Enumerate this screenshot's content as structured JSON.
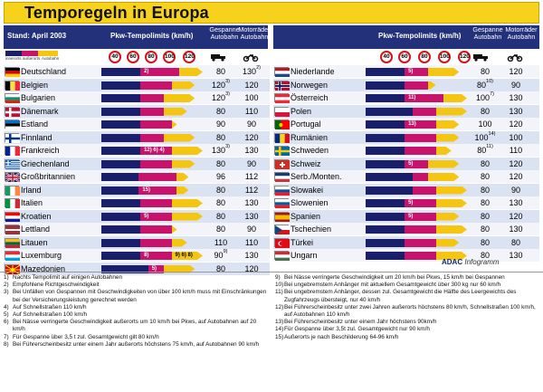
{
  "title": "Temporegeln in Europa",
  "header": {
    "stand": "Stand: April 2003",
    "pkw": "Pkw-Tempolimits (km/h)",
    "gespanne": "Gespanne",
    "gespanne2": "Autobahn",
    "motorrad": "Motorräder",
    "motorrad2": "Autobahn",
    "speeds": [
      "40",
      "60",
      "80",
      "100",
      "120"
    ]
  },
  "legend": {
    "innerorts": "innerorts",
    "ausserorts": "außerorts",
    "autobahn": "Autobahn"
  },
  "colors": {
    "navy": "#1a1f6b",
    "magenta": "#c7136b",
    "yellow": "#f4c511",
    "header": "#23307a",
    "titlebar": "#f7d21c"
  },
  "left": [
    {
      "name": "Deutschland",
      "flag": "de",
      "fn": "2)",
      "g": "80",
      "m": "130",
      "msup": "2)",
      "inner": 50,
      "outer": 100,
      "auto": 130
    },
    {
      "name": "Belgien",
      "flag": "be",
      "fn": "",
      "g": "120",
      "gsup": "3)",
      "m": "120",
      "inner": 50,
      "outer": 90,
      "auto": 120
    },
    {
      "name": "Bulgarien",
      "flag": "bg",
      "fn": "",
      "g": "120",
      "gsup": "3)",
      "m": "100",
      "inner": 50,
      "outer": 80,
      "auto": 120
    },
    {
      "name": "Dänemark",
      "flag": "dk",
      "fn": "",
      "g": "80",
      "m": "110",
      "inner": 50,
      "outer": 80,
      "auto": 110
    },
    {
      "name": "Estland",
      "flag": "ee",
      "fn": "",
      "g": "90",
      "m": "90",
      "inner": 50,
      "outer": 90,
      "auto": 90
    },
    {
      "name": "Finnland",
      "flag": "fi",
      "fn": "",
      "g": "80",
      "m": "120",
      "inner": 50,
      "outer": 80,
      "auto": 120
    },
    {
      "name": "Frankreich",
      "flag": "fr",
      "fn": "12) 6) 4)",
      "g": "130",
      "gsup": "3)",
      "m": "130",
      "inner": 50,
      "outer": 90,
      "auto": 130
    },
    {
      "name": "Griechenland",
      "flag": "gr",
      "fn": "",
      "g": "80",
      "m": "90",
      "inner": 50,
      "outer": 90,
      "auto": 120
    },
    {
      "name": "Großbritannien",
      "flag": "gb",
      "fn": "",
      "g": "96",
      "m": "112",
      "inner": 48,
      "outer": 96,
      "auto": 112
    },
    {
      "name": "Irland",
      "flag": "ie",
      "fn": "15)",
      "g": "80",
      "m": "112",
      "inner": 48,
      "outer": 96,
      "auto": 112
    },
    {
      "name": "Italien",
      "flag": "it",
      "fn": "",
      "g": "80",
      "m": "130",
      "inner": 50,
      "outer": 90,
      "auto": 130
    },
    {
      "name": "Kroatien",
      "flag": "hr",
      "fn": "5)",
      "g": "80",
      "m": "130",
      "inner": 50,
      "outer": 90,
      "auto": 130
    },
    {
      "name": "Lettland",
      "flag": "lv",
      "fn": "",
      "g": "80",
      "m": "90",
      "inner": 50,
      "outer": 90,
      "auto": 90
    },
    {
      "name": "Litauen",
      "flag": "lt",
      "fn": "",
      "g": "110",
      "m": "110",
      "inner": 50,
      "outer": 90,
      "auto": 110
    },
    {
      "name": "Luxemburg",
      "flag": "lu",
      "fn": "8)",
      "fn2": "9) 6) 8)",
      "g": "90",
      "gsup": "9)",
      "m": "130",
      "inner": 50,
      "outer": 90,
      "auto": 130
    },
    {
      "name": "Mazedonien",
      "flag": "mk",
      "fn": "5)",
      "g": "80",
      "m": "120",
      "inner": 60,
      "outer": 80,
      "auto": 120
    }
  ],
  "right": [
    {
      "name": "Niederlande",
      "flag": "nl",
      "fn": "5)",
      "g": "80",
      "m": "120",
      "inner": 50,
      "outer": 80,
      "auto": 120
    },
    {
      "name": "Norwegen",
      "flag": "no",
      "fn": "",
      "g": "80",
      "gsup": "10)",
      "m": "90",
      "inner": 50,
      "outer": 80,
      "auto": 90
    },
    {
      "name": "Österreich",
      "flag": "at",
      "fn": "11)",
      "g": "100",
      "gsup": "7)",
      "m": "130",
      "inner": 50,
      "outer": 100,
      "auto": 130
    },
    {
      "name": "Polen",
      "flag": "pl",
      "fn": "",
      "g": "80",
      "m": "130",
      "inner": 60,
      "outer": 90,
      "auto": 130
    },
    {
      "name": "Portugal",
      "flag": "pt",
      "fn": "13)",
      "g": "100",
      "m": "120",
      "inner": 50,
      "outer": 90,
      "auto": 120
    },
    {
      "name": "Rumänien",
      "flag": "ro",
      "fn": "",
      "g": "100",
      "gsup": "14)",
      "m": "100",
      "inner": 50,
      "outer": 90,
      "auto": 120
    },
    {
      "name": "Schweden",
      "flag": "se",
      "fn": "",
      "g": "80",
      "gsup": "11)",
      "m": "110",
      "inner": 50,
      "outer": 90,
      "auto": 110
    },
    {
      "name": "Schweiz",
      "flag": "ch",
      "fn": "5)",
      "g": "80",
      "m": "120",
      "inner": 50,
      "outer": 80,
      "auto": 120
    },
    {
      "name": "Serb./Monten.",
      "flag": "yu",
      "fn": "",
      "g": "80",
      "m": "120",
      "inner": 60,
      "outer": 80,
      "auto": 120
    },
    {
      "name": "Slowakei",
      "flag": "sk",
      "fn": "",
      "g": "80",
      "m": "90",
      "inner": 60,
      "outer": 90,
      "auto": 130
    },
    {
      "name": "Slowenien",
      "flag": "si",
      "fn": "5)",
      "g": "80",
      "m": "130",
      "inner": 50,
      "outer": 90,
      "auto": 130
    },
    {
      "name": "Spanien",
      "flag": "es",
      "fn": "5)",
      "g": "80",
      "m": "120",
      "inner": 50,
      "outer": 90,
      "auto": 120
    },
    {
      "name": "Tschechien",
      "flag": "cz",
      "fn": "",
      "g": "80",
      "m": "130",
      "inner": 50,
      "outer": 90,
      "auto": 130
    },
    {
      "name": "Türkei",
      "flag": "tr",
      "fn": "",
      "g": "80",
      "m": "80",
      "inner": 50,
      "outer": 90,
      "auto": 120
    },
    {
      "name": "Ungarn",
      "flag": "hu",
      "fn": "",
      "g": "80",
      "m": "130",
      "inner": 50,
      "outer": 90,
      "auto": 130
    }
  ],
  "adac": "ADAC",
  "infogramm": "Infogramm",
  "notes_left": [
    {
      "n": "1)",
      "t": "Nachts Tempolimit auf einigen Autobahnen"
    },
    {
      "n": "2)",
      "t": "Empfohlene Richtgeschwindigkeit"
    },
    {
      "n": "3)",
      "t": "Bei Unfällen von Gespannen mit Geschwindigkeiten von über 100 km/h muss mit Einschränkungen bei der Versicherungsleistung gerechnet werden"
    },
    {
      "n": "4)",
      "t": "Auf Schnellstraßen 110 km/h"
    },
    {
      "n": "5)",
      "t": "Auf Schnellstraßen 100 km/h"
    },
    {
      "n": "6)",
      "t": "Bei Nässe verringerte Geschwindigkeit außerorts um 10 km/h bei Pkws, auf Autobahnen auf 20 km/h"
    },
    {
      "n": "7)",
      "t": "Für Gespanne über 3,5 t zul. Gesamtgewicht gilt 80 km/h"
    },
    {
      "n": "8)",
      "t": "Bei Führerscheinbesitz unter einem Jahr außerorts höchstens 75 km/h, auf Autobahnen 90 km/h"
    }
  ],
  "notes_right": [
    {
      "n": "9)",
      "t": "Bei Nässe verringerte Geschwindigkeit um 20 km/h bei Pkws, 15 km/h bei Gespannen"
    },
    {
      "n": "10)",
      "t": "Bei ungebremstem Anhänger mit aktuellem Gesamtgewicht über 300 kg nur 60 km/h"
    },
    {
      "n": "11)",
      "t": "Bei ungebremstem Anhänger, dessen zul. Gesamtgewicht die Hälfte des Leergewichts des Zugfahrzeugs übersteigt, nur 40 km/h"
    },
    {
      "n": "12)",
      "t": "Bei Führerscheinbesitz unter zwei Jahren außerorts höchstens 80 km/h, Schnellstraßen 100 km/h, auf Autobahnen 110 km/h"
    },
    {
      "n": "13)",
      "t": "Bei Führerscheinbesitz unter einem Jahr höchstens 90km/h"
    },
    {
      "n": "14)",
      "t": "Für Gespanne über 3,5t zul. Gesamtgewicht nur 90 km/h"
    },
    {
      "n": "15)",
      "t": "Außerorts je nach Beschilderung 64-96 km/h"
    }
  ]
}
